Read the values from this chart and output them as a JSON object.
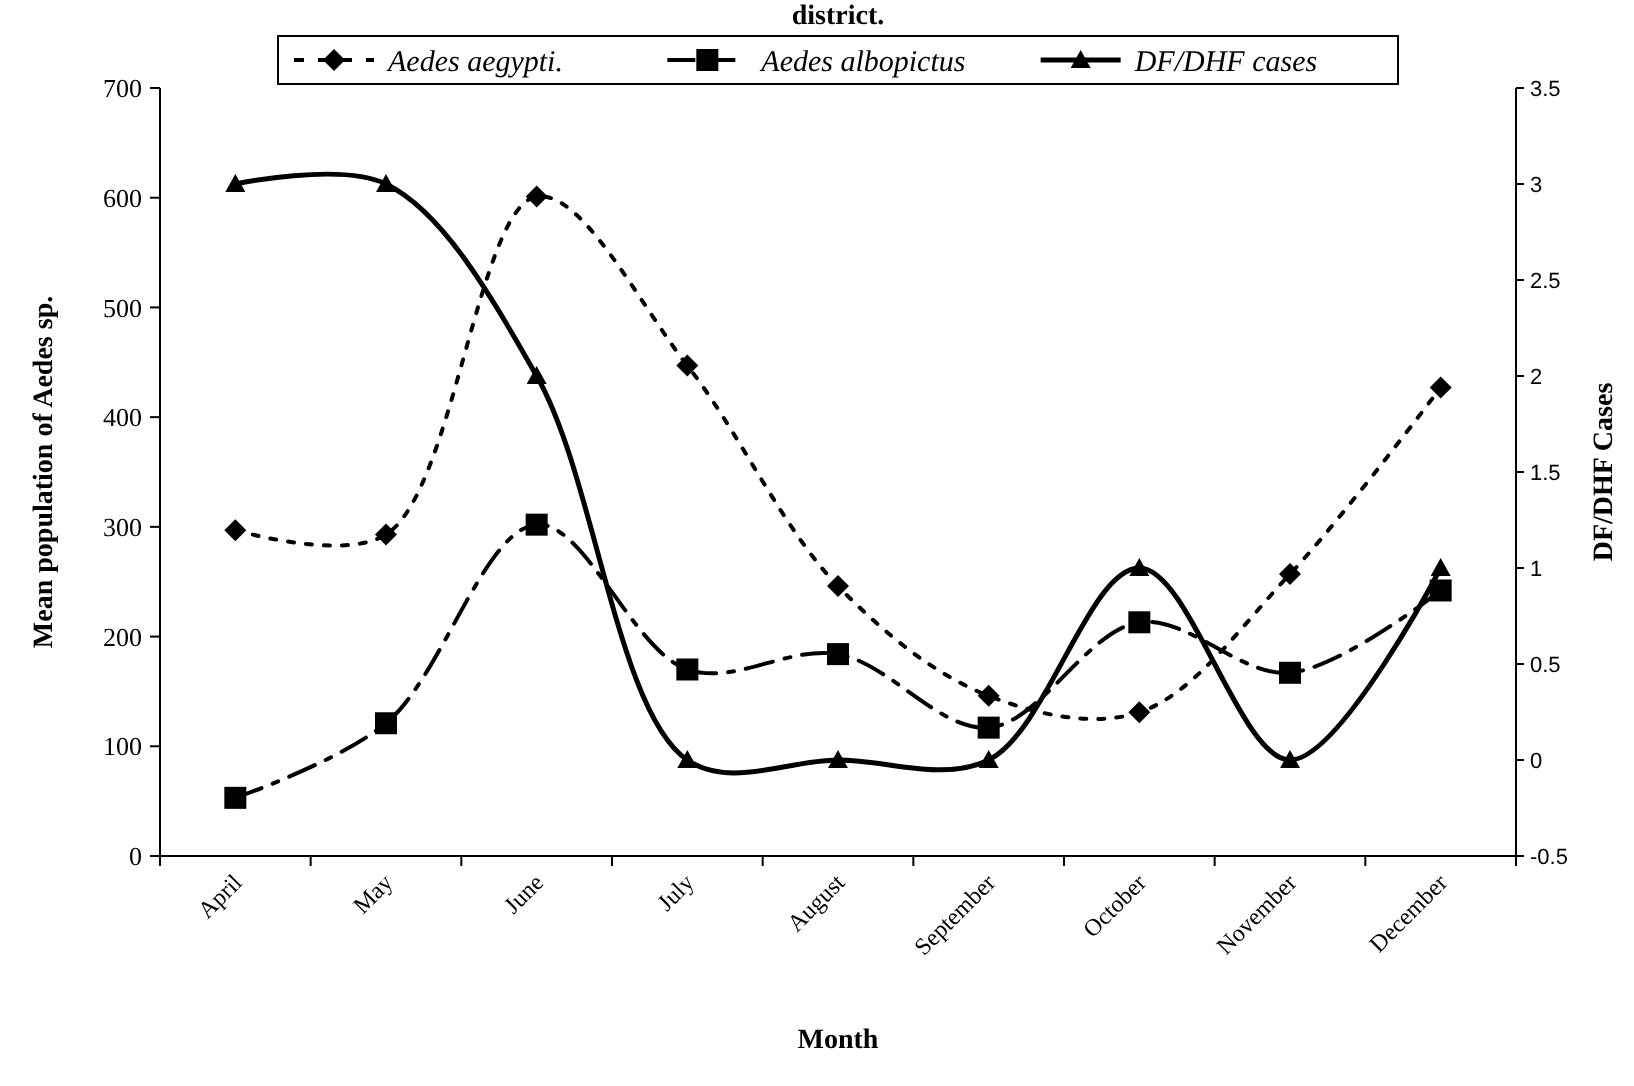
{
  "chart_data": {
    "type": "line",
    "title": "district.",
    "xlabel": "Month",
    "ylabel": "Mean population of Aedes sp.",
    "y2label": "DF/DHF Cases",
    "categories": [
      "April",
      "May",
      "June",
      "July",
      "August",
      "September",
      "October",
      "November",
      "December"
    ],
    "series": [
      {
        "name": "Aedes aegypti.",
        "color": "#000000",
        "marker": "diamond",
        "line_style": "dotted",
        "values": [
          297,
          293,
          601,
          447,
          246,
          146,
          131,
          257,
          427
        ]
      },
      {
        "name": "Aedes albopictus",
        "color": "#000000",
        "marker": "square",
        "line_style": "dashed",
        "values": [
          53,
          121,
          302,
          170,
          184,
          117,
          213,
          167,
          242
        ]
      },
      {
        "name": "DF/DHF cases",
        "color": "#000000",
        "marker": "triangle",
        "line_style": "solid",
        "axis": "y2",
        "values": [
          3,
          3,
          2,
          0,
          0,
          0,
          1,
          0,
          1
        ]
      }
    ],
    "ylim": [
      0,
      700
    ],
    "yticks": [
      0,
      100,
      200,
      300,
      400,
      500,
      600,
      700
    ],
    "y2lim": [
      -0.5,
      3.5
    ],
    "y2ticks": [
      -0.5,
      0,
      0.5,
      1,
      1.5,
      2,
      2.5,
      3,
      3.5
    ],
    "legend": "top",
    "grid": false
  }
}
